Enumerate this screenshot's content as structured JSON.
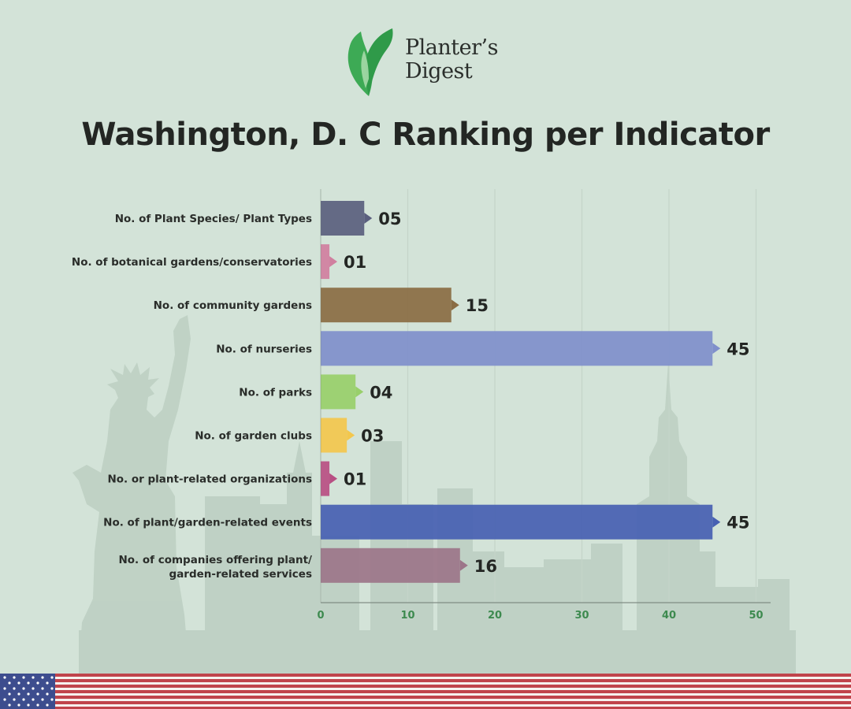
{
  "brand": {
    "line1": "Planter’s",
    "line2": "Digest",
    "leaf_color": "#3daa55"
  },
  "title": "Washington, D. C Ranking per Indicator",
  "chart_data": {
    "type": "bar",
    "orientation": "horizontal",
    "categories": [
      "No. of Plant Species/ Plant Types",
      "No. of botanical gardens/conservatories",
      "No. of community gardens",
      "No. of nurseries",
      "No. of parks",
      "No. of garden clubs",
      "No. or plant-related organizations",
      "No. of plant/garden-related events",
      "No. of companies offering plant/ garden-related services"
    ],
    "values": [
      5,
      1,
      15,
      45,
      4,
      3,
      1,
      45,
      16
    ],
    "value_labels": [
      "05",
      "01",
      "15",
      "45",
      "04",
      "03",
      "01",
      "45",
      "16"
    ],
    "colors": [
      "#5a5f7e",
      "#d07f9f",
      "#8a6c43",
      "#7f8fcb",
      "#98cf6a",
      "#f3c74d",
      "#b84f83",
      "#4760b2",
      "#9c7589"
    ],
    "xlim": [
      0,
      52
    ],
    "x_ticks": [
      0,
      10,
      20,
      30,
      40,
      50
    ],
    "grid": true,
    "legend": "none",
    "title": "Washington, D. C Ranking per Indicator",
    "xlabel": "",
    "ylabel": ""
  },
  "colors": {
    "background": "#d3e3d8",
    "tick_label": "#3d8a4f",
    "grid": "#c4d4c9",
    "axis": "#6f7a72",
    "silhouette": "#bccfc2",
    "label_text": "#2a2d2a",
    "flag_red": "#c0444b",
    "flag_blue": "#3d4d8e"
  }
}
